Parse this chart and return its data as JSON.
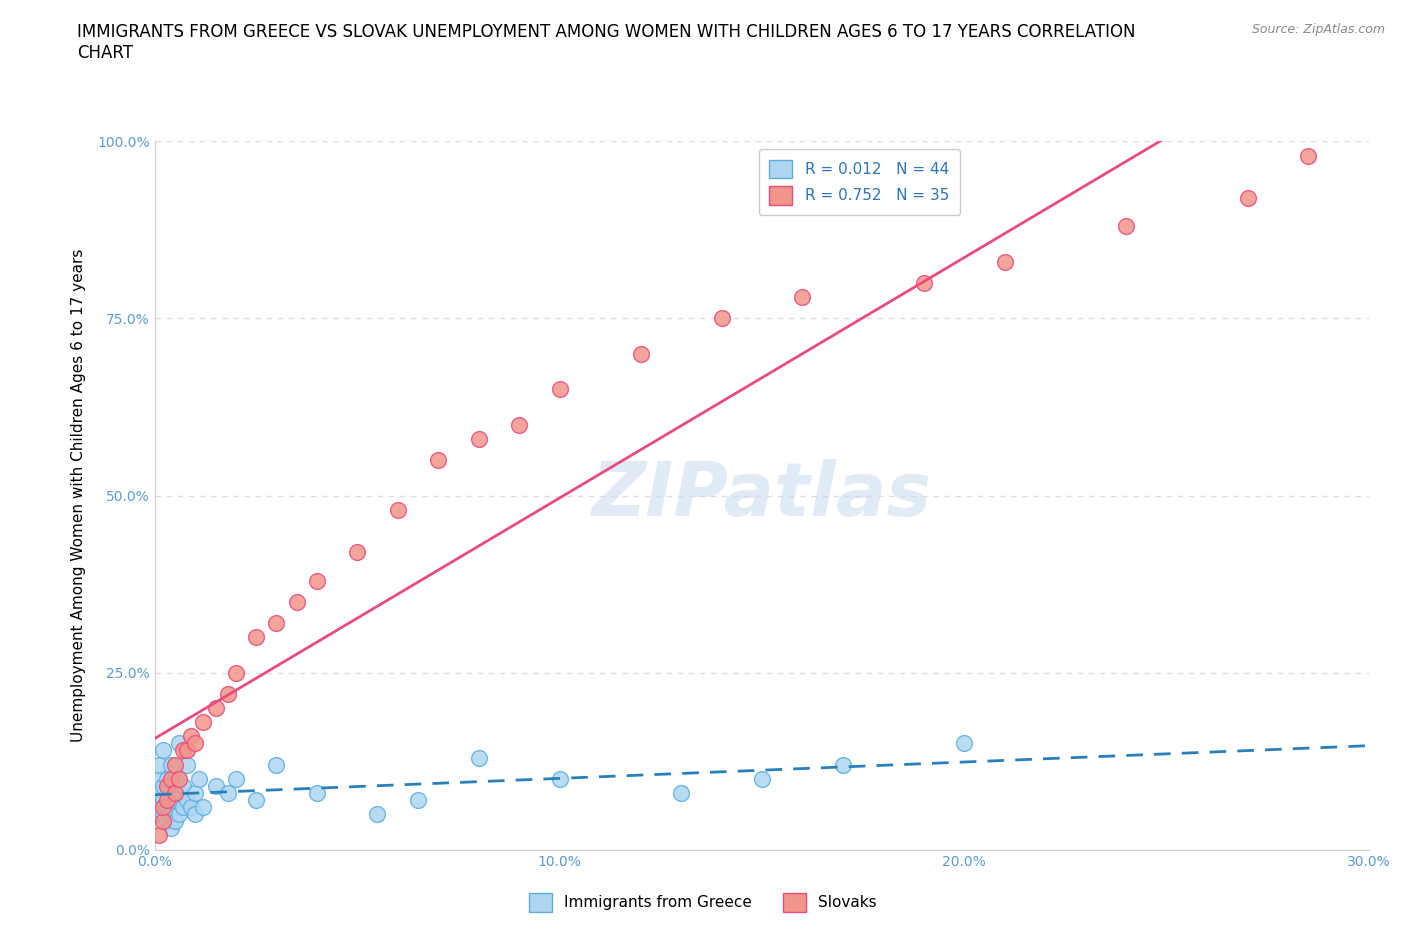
{
  "title": "IMMIGRANTS FROM GREECE VS SLOVAK UNEMPLOYMENT AMONG WOMEN WITH CHILDREN AGES 6 TO 17 YEARS CORRELATION\nCHART",
  "source": "Source: ZipAtlas.com",
  "ylabel": "Unemployment Among Women with Children Ages 6 to 17 years",
  "xlim": [
    0,
    0.3
  ],
  "ylim": [
    0,
    1.0
  ],
  "xticks": [
    0.0,
    0.05,
    0.1,
    0.15,
    0.2,
    0.25,
    0.3
  ],
  "xticklabels": [
    "0.0%",
    "",
    "10.0%",
    "",
    "20.0%",
    "",
    "30.0%"
  ],
  "yticks": [
    0.0,
    0.25,
    0.5,
    0.75,
    1.0
  ],
  "yticklabels": [
    "0.0%",
    "25.0%",
    "50.0%",
    "75.0%",
    "100.0%"
  ],
  "watermark": "ZIPatlas",
  "series1_color": "#AED6F1",
  "series1_edge": "#5DADE2",
  "series2_color": "#F1948A",
  "series2_edge": "#E74C7C",
  "trendline1_color": "#2980B9",
  "trendline2_color": "#E74C7C",
  "R1": 0.012,
  "N1": 44,
  "R2": 0.752,
  "N2": 35,
  "legend_label1": "Immigrants from Greece",
  "legend_label2": "Slovaks",
  "series1_x": [
    0.001,
    0.001,
    0.001,
    0.001,
    0.002,
    0.002,
    0.002,
    0.002,
    0.003,
    0.003,
    0.003,
    0.004,
    0.004,
    0.004,
    0.004,
    0.005,
    0.005,
    0.005,
    0.006,
    0.006,
    0.006,
    0.007,
    0.007,
    0.008,
    0.008,
    0.009,
    0.01,
    0.01,
    0.011,
    0.012,
    0.015,
    0.018,
    0.02,
    0.025,
    0.03,
    0.04,
    0.055,
    0.065,
    0.08,
    0.1,
    0.13,
    0.15,
    0.17,
    0.2
  ],
  "series1_y": [
    0.05,
    0.08,
    0.1,
    0.12,
    0.05,
    0.07,
    0.09,
    0.14,
    0.04,
    0.06,
    0.1,
    0.03,
    0.05,
    0.08,
    0.12,
    0.04,
    0.07,
    0.1,
    0.05,
    0.08,
    0.15,
    0.06,
    0.09,
    0.07,
    0.12,
    0.06,
    0.05,
    0.08,
    0.1,
    0.06,
    0.09,
    0.08,
    0.1,
    0.07,
    0.12,
    0.08,
    0.05,
    0.07,
    0.13,
    0.1,
    0.08,
    0.1,
    0.12,
    0.15
  ],
  "series2_x": [
    0.001,
    0.002,
    0.002,
    0.003,
    0.003,
    0.004,
    0.005,
    0.005,
    0.006,
    0.007,
    0.008,
    0.009,
    0.01,
    0.012,
    0.015,
    0.018,
    0.02,
    0.025,
    0.03,
    0.035,
    0.04,
    0.05,
    0.06,
    0.07,
    0.08,
    0.09,
    0.1,
    0.12,
    0.14,
    0.16,
    0.19,
    0.21,
    0.24,
    0.27,
    0.285
  ],
  "series2_y": [
    0.02,
    0.04,
    0.06,
    0.07,
    0.09,
    0.1,
    0.08,
    0.12,
    0.1,
    0.14,
    0.14,
    0.16,
    0.15,
    0.18,
    0.2,
    0.22,
    0.25,
    0.3,
    0.32,
    0.35,
    0.38,
    0.42,
    0.48,
    0.55,
    0.58,
    0.6,
    0.65,
    0.7,
    0.75,
    0.78,
    0.8,
    0.83,
    0.88,
    0.92,
    0.98
  ],
  "grid_color": "#DDDDDD",
  "background_color": "#FFFFFF",
  "title_fontsize": 12,
  "axis_label_fontsize": 11,
  "tick_fontsize": 10,
  "legend_fontsize": 11,
  "tick_color": "#5B9BD5",
  "legend_text_color": "#2E75B6"
}
